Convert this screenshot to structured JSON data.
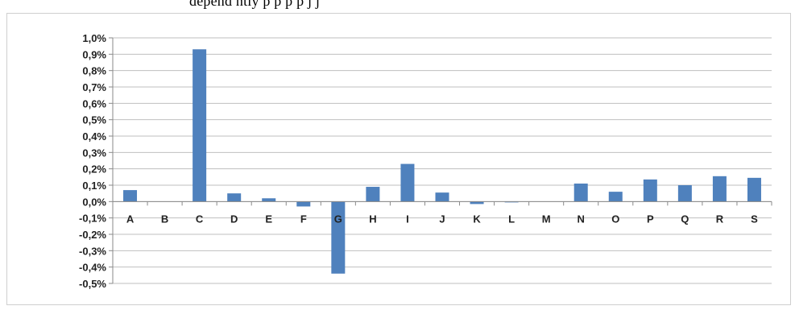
{
  "header_text": "depend   ntly   p   p   p   p   j   j",
  "chart_data": {
    "type": "bar",
    "title": "",
    "xlabel": "",
    "ylabel": "",
    "categories": [
      "A",
      "B",
      "C",
      "D",
      "E",
      "F",
      "G",
      "H",
      "I",
      "J",
      "K",
      "L",
      "M",
      "N",
      "O",
      "P",
      "Q",
      "R",
      "S"
    ],
    "values": [
      0.07,
      0.0,
      0.93,
      0.05,
      0.02,
      -0.03,
      -0.44,
      0.09,
      0.23,
      0.055,
      -0.015,
      -0.005,
      0.0,
      0.11,
      0.06,
      0.135,
      0.1,
      0.155,
      0.145
    ],
    "yticks": [
      "1,0%",
      "0,9%",
      "0,8%",
      "0,7%",
      "0,6%",
      "0,5%",
      "0,4%",
      "0,3%",
      "0,2%",
      "0,1%",
      "0,0%",
      "-0,1%",
      "-0,2%",
      "-0,3%",
      "-0,4%",
      "-0,5%"
    ],
    "ylim": [
      -0.5,
      1.0
    ],
    "grid": true,
    "bar_color": "#4f81bd",
    "legend": "none"
  }
}
